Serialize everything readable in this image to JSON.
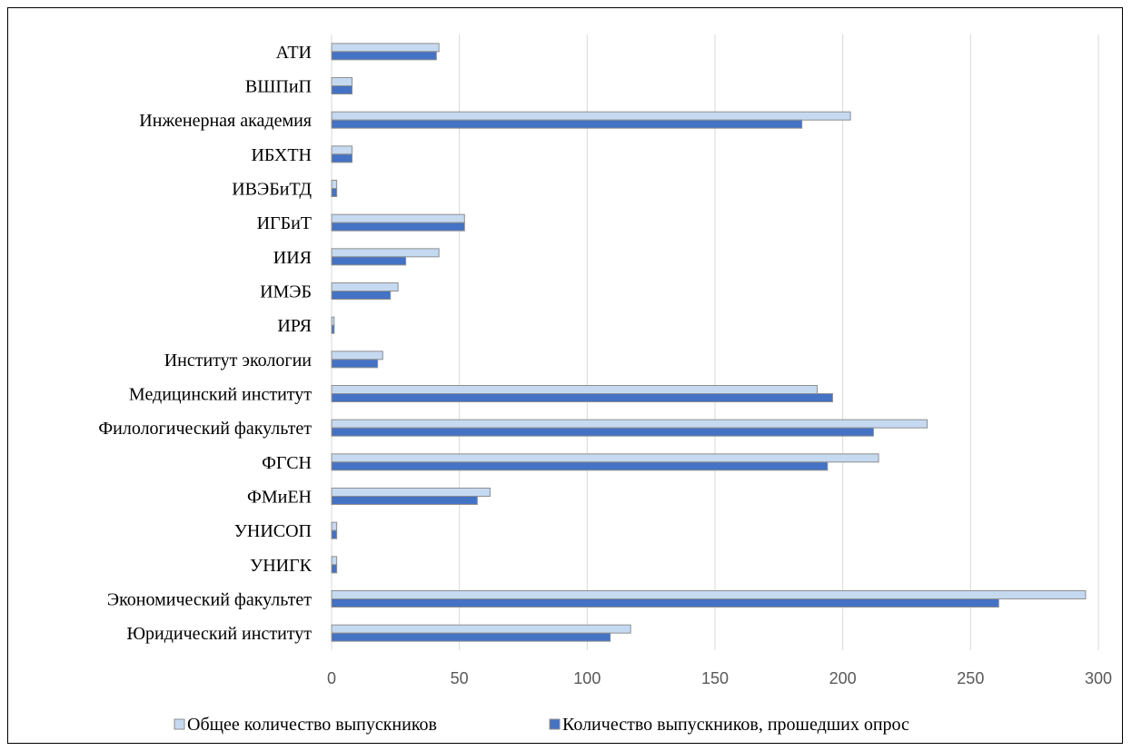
{
  "chart_data": {
    "type": "bar",
    "orientation": "horizontal",
    "categories": [
      "АТИ",
      "ВШПиП",
      "Инженерная академия",
      "ИБХТН",
      "ИВЭБиТД",
      "ИГБиТ",
      "ИИЯ",
      "ИМЭБ",
      "ИРЯ",
      "Институт экологии",
      "Медицинский институт",
      "Филологический факультет",
      "ФГСН",
      "ФМиЕН",
      "УНИСОП",
      "УНИГК",
      "Экономический факультет",
      "Юридический институт"
    ],
    "series": [
      {
        "name": "Общее количество выпускников",
        "color": "#c5d9f1",
        "values": [
          42,
          8,
          203,
          8,
          2,
          52,
          42,
          26,
          1,
          20,
          190,
          233,
          214,
          62,
          2,
          2,
          295,
          117
        ]
      },
      {
        "name": "Количество выпускников, прошедших опрос",
        "color": "#4472c4",
        "values": [
          41,
          8,
          184,
          8,
          2,
          52,
          29,
          23,
          1,
          18,
          196,
          212,
          194,
          57,
          2,
          2,
          261,
          109
        ]
      }
    ],
    "xlim": [
      0,
      300
    ],
    "xticks": [
      "0",
      "50",
      "100",
      "150",
      "200",
      "250",
      "300"
    ],
    "grid": true,
    "legend": "bottom",
    "title": "",
    "xlabel": "",
    "ylabel": ""
  }
}
